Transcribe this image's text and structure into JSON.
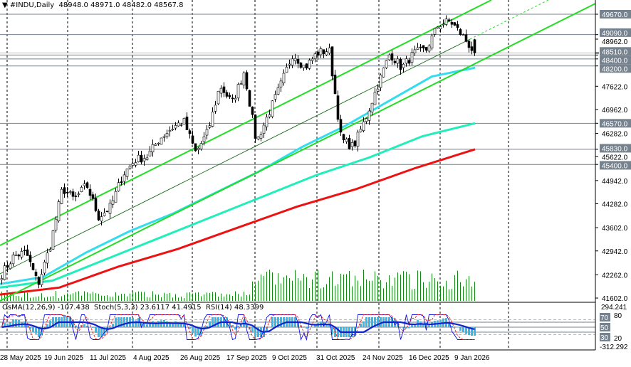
{
  "header": {
    "symbol": "#INDU,Daily",
    "open": "48948.0",
    "high": "48971.0",
    "low": "48482.0",
    "close": "48567.8"
  },
  "indicators": {
    "osma_label": "OsMA(12,26,9)",
    "osma_value": "-107.438",
    "stoch_label": "Stoch(5,3,3)",
    "stoch_main": "23.6117",
    "stoch_signal": "41.4915",
    "rsi_label": "RSI(14)",
    "rsi_value": "48.3399",
    "scale": [
      "294.241",
      "80",
      "70",
      "50",
      "30",
      "20",
      "-312.292"
    ]
  },
  "colors": {
    "channel": "#22dd22",
    "ma_fast": "#33ddee",
    "ma_mid": "#22eebb",
    "ma_slow": "#ee1111",
    "volume": "#118811",
    "osma": "#33bbee",
    "stoch": "#1111dd",
    "stoch_signal": "#ee1111",
    "rsi": "#1122cc",
    "level_label_bg": "#76828e"
  },
  "chart_data": {
    "type": "candlestick",
    "ylim": [
      41602,
      49900
    ],
    "price_ticks": [
      "48962.0",
      "47622.0",
      "46962.0",
      "46282.0",
      "45622.0",
      "44942.0",
      "44282.0",
      "43602.0",
      "42942.0",
      "42262.0",
      "41602.0"
    ],
    "levels": [
      "49670.0",
      "49090.0",
      "48510.0",
      "48400.0",
      "48200.0",
      "46570.0",
      "45830.0",
      "45400.0"
    ],
    "current_price": "48567.8",
    "x_labels": [
      "28 May 2025",
      "19 Jun 2025",
      "11 Jul 2025",
      "4 Aug 2025",
      "26 Aug 2025",
      "17 Sep 2025",
      "9 Oct 2025",
      "31 Oct 2025",
      "24 Nov 2025",
      "16 Dec 2025",
      "9 Jan 2026"
    ],
    "approx_close_path": [
      [
        "28 May 2025",
        42290
      ],
      [
        "3 Jun 2025",
        42800
      ],
      [
        "10 Jun 2025",
        42900
      ],
      [
        "19 Jun 2025",
        41990
      ],
      [
        "24 Jun 2025",
        43100
      ],
      [
        "30 Jun 2025",
        44720
      ],
      [
        "9 Jul 2025",
        44400
      ],
      [
        "16 Jul 2025",
        44820
      ],
      [
        "23 Jul 2025",
        43900
      ],
      [
        "30 Jul 2025",
        44210
      ],
      [
        "4 Aug 2025",
        45120
      ],
      [
        "12 Aug 2025",
        45530
      ],
      [
        "19 Aug 2025",
        45630
      ],
      [
        "26 Aug 2025",
        46130
      ],
      [
        "3 Sep 2025",
        46430
      ],
      [
        "10 Sep 2025",
        46640
      ],
      [
        "12 Sep 2025",
        45730
      ],
      [
        "17 Sep 2025",
        46330
      ],
      [
        "24 Sep 2025",
        47650
      ],
      [
        "30 Sep 2025",
        47140
      ],
      [
        "6 Oct 2025",
        48050
      ],
      [
        "10 Oct 2025",
        46030
      ],
      [
        "16 Oct 2025",
        46840
      ],
      [
        "21 Oct 2025",
        47650
      ],
      [
        "28 Oct 2025",
        48560
      ],
      [
        "3 Nov 2025",
        48150
      ],
      [
        "7 Nov 2025",
        48560
      ],
      [
        "12 Nov 2025",
        48660
      ],
      [
        "14 Nov 2025",
        46100
      ],
      [
        "20 Nov 2025",
        45900
      ],
      [
        "24 Nov 2025",
        46700
      ],
      [
        "1 Dec 2025",
        47650
      ],
      [
        "8 Dec 2025",
        48560
      ],
      [
        "12 Dec 2025",
        48150
      ],
      [
        "16 Dec 2025",
        48560
      ],
      [
        "22 Dec 2025",
        48660
      ],
      [
        "30 Dec 2025",
        49370
      ],
      [
        "6 Jan 2026",
        49470
      ],
      [
        "9 Jan 2026",
        49060
      ],
      [
        "13 Jan 2026",
        48568
      ]
    ],
    "moving_averages": {
      "fast": [
        42000,
        42200,
        42900,
        43500,
        44000,
        44600,
        45200,
        45900,
        46500,
        47200,
        47900,
        48150
      ],
      "mid": [
        41900,
        42100,
        42700,
        43300,
        43900,
        44500,
        45100,
        45600,
        46200,
        46570
      ],
      "slow": [
        41700,
        41900,
        42500,
        43000,
        43600,
        44200,
        44700,
        45300,
        45830
      ]
    }
  }
}
